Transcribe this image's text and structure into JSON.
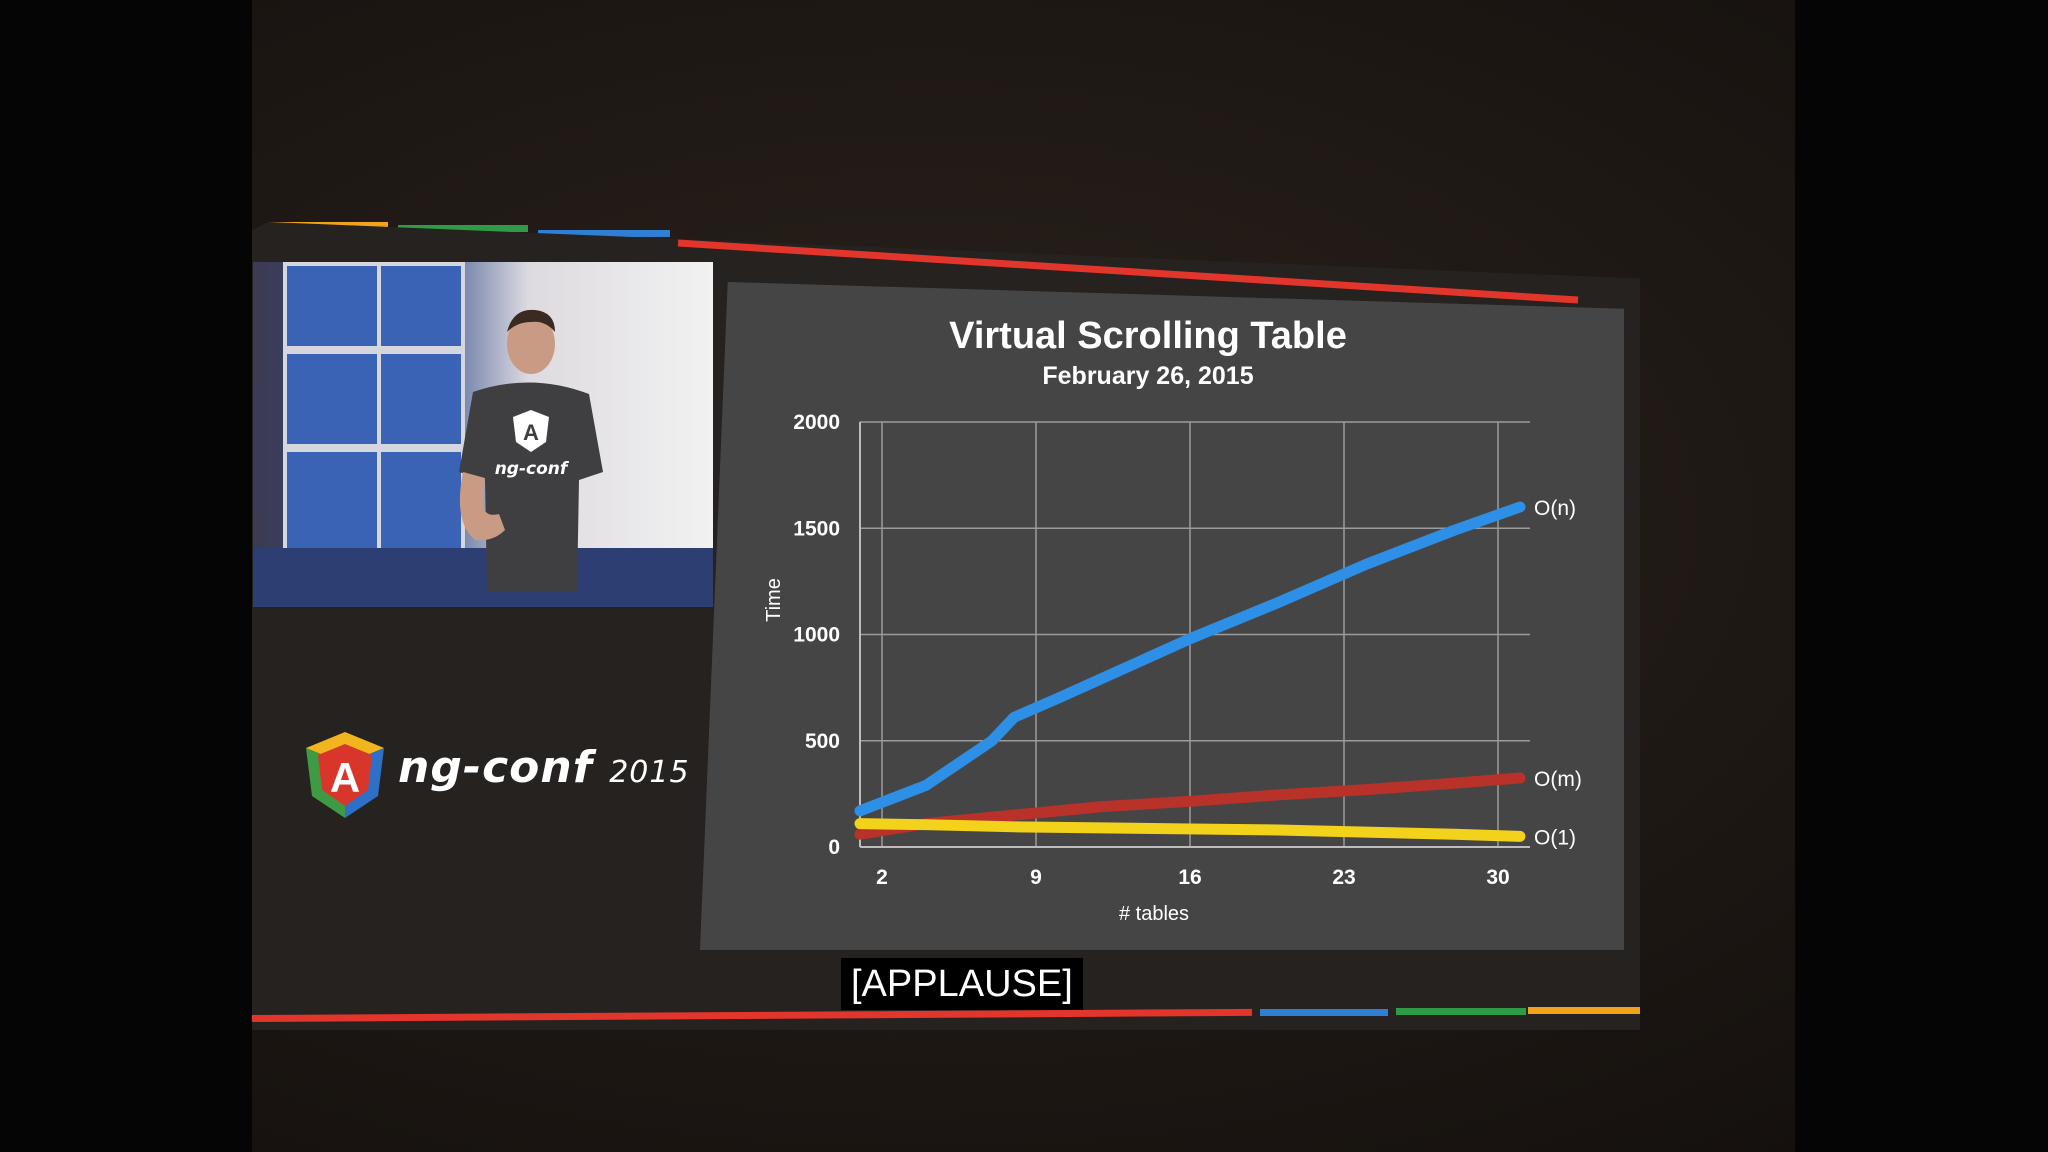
{
  "slide": {
    "accent_colors": [
      "#f2a31b",
      "#2f9b47",
      "#2f7fd4",
      "#e2352b"
    ]
  },
  "logo": {
    "letter": "A",
    "name": "ng-conf",
    "year": "2015",
    "colors": {
      "red": "#d9362b",
      "blue": "#2e6fc7",
      "green": "#3f9b43",
      "yellow": "#f2b51d"
    }
  },
  "speaker_shirt": {
    "logo_letter": "A",
    "text": "ng-conf"
  },
  "caption": "[APPLAUSE]",
  "chart_data": {
    "type": "line",
    "title": "Virtual Scrolling Table",
    "subtitle": "February 26, 2015",
    "xlabel": "# tables",
    "ylabel": "Time",
    "x_ticks": [
      2,
      9,
      16,
      23,
      30
    ],
    "y_ticks": [
      0,
      500,
      1000,
      1500,
      2000
    ],
    "xlim": [
      1,
      31
    ],
    "ylim": [
      0,
      2000
    ],
    "grid": true,
    "series": [
      {
        "name": "O(n)",
        "color": "#2d8fe6",
        "x": [
          1,
          4,
          7,
          8,
          10,
          13,
          16,
          20,
          24,
          28,
          31
        ],
        "y": [
          170,
          290,
          500,
          610,
          700,
          840,
          980,
          1150,
          1330,
          1490,
          1600
        ]
      },
      {
        "name": "O(m)",
        "color": "#b8322a",
        "x": [
          1,
          4,
          8,
          12,
          16,
          20,
          24,
          28,
          31
        ],
        "y": [
          60,
          110,
          150,
          190,
          215,
          245,
          270,
          300,
          325
        ]
      },
      {
        "name": "O(1)",
        "color": "#f3d21c",
        "x": [
          1,
          4,
          8,
          12,
          16,
          20,
          24,
          28,
          31
        ],
        "y": [
          110,
          105,
          95,
          90,
          85,
          80,
          70,
          60,
          50
        ]
      }
    ]
  }
}
